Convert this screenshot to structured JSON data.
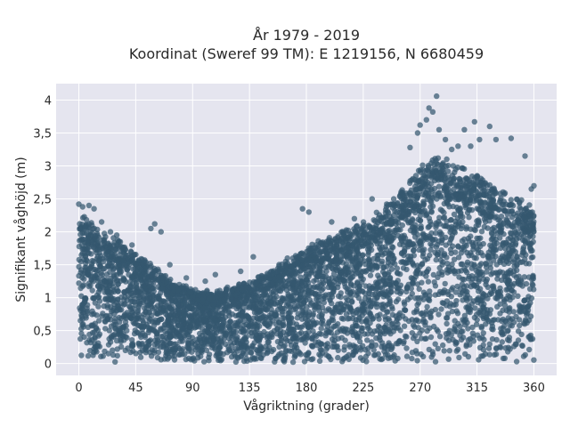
{
  "chart_data": {
    "type": "scatter",
    "title_line1": "År 1979 - 2019",
    "title_line2": "Koordinat (Sweref 99 TM): E 1219156, N 6680459",
    "xlabel": "Vågriktning (grader)",
    "ylabel": "Signifikant våghöjd (m)",
    "xlim": [
      -18,
      378
    ],
    "ylim": [
      -0.18,
      4.25
    ],
    "xticks": [
      0,
      45,
      90,
      135,
      180,
      225,
      270,
      315,
      360
    ],
    "xtick_labels": [
      "0",
      "45",
      "90",
      "135",
      "180",
      "225",
      "270",
      "315",
      "360"
    ],
    "yticks": [
      0,
      0.5,
      1,
      1.5,
      2,
      2.5,
      3,
      3.5,
      4
    ],
    "ytick_labels": [
      "0",
      "0,5",
      "1",
      "1,5",
      "2",
      "2,5",
      "3",
      "3,5",
      "4"
    ],
    "grid": true,
    "colors": {
      "point": "#34586f",
      "plot_bg": "#e5e5ef",
      "grid": "#ffffff"
    },
    "envelope": {
      "direction": [
        0,
        10,
        20,
        30,
        45,
        60,
        75,
        90,
        105,
        120,
        135,
        150,
        165,
        180,
        195,
        210,
        225,
        240,
        255,
        270,
        285,
        300,
        315,
        330,
        345,
        360
      ],
      "max_height": [
        2.2,
        2.05,
        1.9,
        1.8,
        1.6,
        1.4,
        1.2,
        1.08,
        1.05,
        1.12,
        1.2,
        1.35,
        1.5,
        1.7,
        1.85,
        1.95,
        2.05,
        2.25,
        2.5,
        2.85,
        3.0,
        2.9,
        2.75,
        2.55,
        2.4,
        2.3
      ]
    },
    "outliers": [
      {
        "x": 0,
        "y": 2.42
      },
      {
        "x": 3,
        "y": 2.38
      },
      {
        "x": 8,
        "y": 2.4
      },
      {
        "x": 12,
        "y": 2.35
      },
      {
        "x": 18,
        "y": 2.15
      },
      {
        "x": 25,
        "y": 2.0
      },
      {
        "x": 30,
        "y": 1.95
      },
      {
        "x": 42,
        "y": 1.8
      },
      {
        "x": 60,
        "y": 2.12
      },
      {
        "x": 57,
        "y": 2.05
      },
      {
        "x": 65,
        "y": 2.0
      },
      {
        "x": 72,
        "y": 1.5
      },
      {
        "x": 85,
        "y": 1.3
      },
      {
        "x": 100,
        "y": 1.25
      },
      {
        "x": 108,
        "y": 1.35
      },
      {
        "x": 128,
        "y": 1.4
      },
      {
        "x": 138,
        "y": 1.62
      },
      {
        "x": 165,
        "y": 1.6
      },
      {
        "x": 177,
        "y": 2.35
      },
      {
        "x": 182,
        "y": 2.3
      },
      {
        "x": 200,
        "y": 2.15
      },
      {
        "x": 218,
        "y": 2.2
      },
      {
        "x": 232,
        "y": 2.5
      },
      {
        "x": 262,
        "y": 3.28
      },
      {
        "x": 268,
        "y": 3.5
      },
      {
        "x": 270,
        "y": 3.62
      },
      {
        "x": 275,
        "y": 3.7
      },
      {
        "x": 277,
        "y": 3.88
      },
      {
        "x": 280,
        "y": 3.82
      },
      {
        "x": 283,
        "y": 4.06
      },
      {
        "x": 285,
        "y": 3.55
      },
      {
        "x": 290,
        "y": 3.4
      },
      {
        "x": 300,
        "y": 3.3
      },
      {
        "x": 305,
        "y": 3.55
      },
      {
        "x": 310,
        "y": 3.3
      },
      {
        "x": 313,
        "y": 3.67
      },
      {
        "x": 317,
        "y": 3.4
      },
      {
        "x": 325,
        "y": 3.6
      },
      {
        "x": 330,
        "y": 3.4
      },
      {
        "x": 342,
        "y": 3.42
      },
      {
        "x": 353,
        "y": 3.15
      },
      {
        "x": 358,
        "y": 2.65
      },
      {
        "x": 360,
        "y": 2.7
      },
      {
        "x": 295,
        "y": 3.25
      }
    ]
  }
}
